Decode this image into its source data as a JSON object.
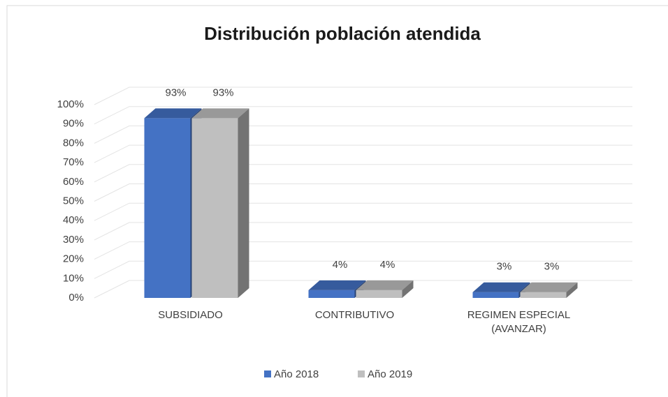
{
  "chart_data": {
    "type": "bar3d",
    "title": "Distribución población atendida",
    "categories": [
      "SUBSIDIADO",
      "CONTRIBUTIVO",
      "REGIMEN ESPECIAL (AVANZAR)"
    ],
    "series": [
      {
        "name": "Año 2018",
        "color": "#4472c4",
        "values": [
          93,
          4,
          3
        ],
        "value_labels": [
          "93%",
          "4%",
          "3%"
        ]
      },
      {
        "name": "Año 2019",
        "color": "#bfbfbf",
        "values": [
          93,
          4,
          3
        ],
        "value_labels": [
          "93%",
          "4%",
          "3%"
        ]
      }
    ],
    "ylim": [
      0,
      100
    ],
    "yticks": [
      {
        "value": 0,
        "label": "0%"
      },
      {
        "value": 10,
        "label": "10%"
      },
      {
        "value": 20,
        "label": "20%"
      },
      {
        "value": 30,
        "label": "30%"
      },
      {
        "value": 40,
        "label": "40%"
      },
      {
        "value": 50,
        "label": "50%"
      },
      {
        "value": 60,
        "label": "60%"
      },
      {
        "value": 70,
        "label": "70%"
      },
      {
        "value": 80,
        "label": "80%"
      },
      {
        "value": 90,
        "label": "90%"
      },
      {
        "value": 100,
        "label": "100%"
      }
    ],
    "grid": true,
    "legend": "bottom"
  }
}
